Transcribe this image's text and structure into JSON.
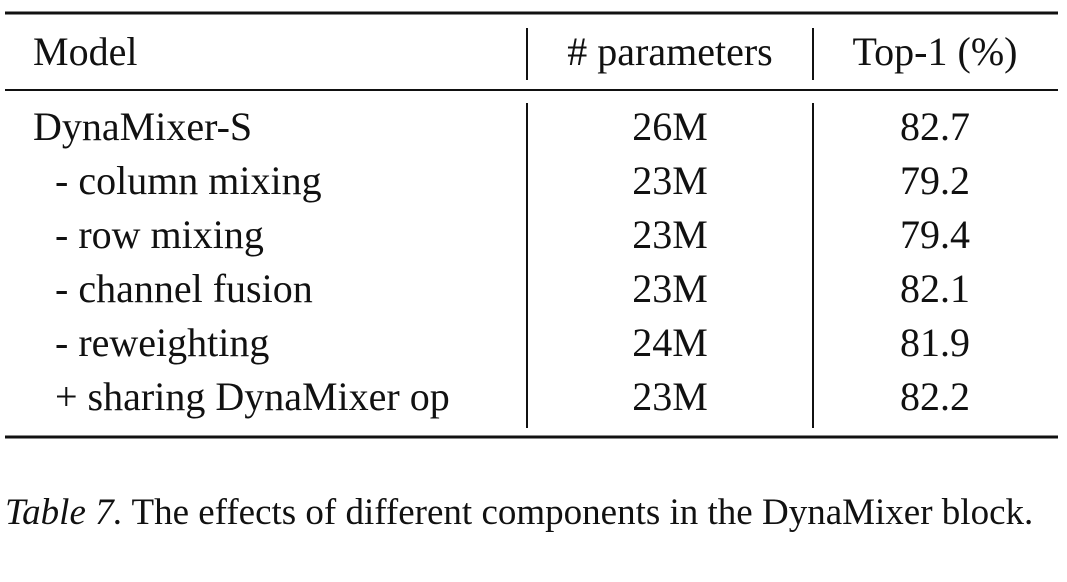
{
  "table": {
    "header": [
      "Model",
      "# parameters",
      "Top-1 (%)"
    ],
    "rows": [
      [
        "DynaMixer-S",
        "26M",
        "82.7"
      ],
      [
        "- column mixing",
        "23M",
        "79.2"
      ],
      [
        "- row mixing",
        "23M",
        "79.4"
      ],
      [
        "- channel fusion",
        "23M",
        "82.1"
      ],
      [
        "- reweighting",
        "24M",
        "81.9"
      ],
      [
        "+ sharing DynaMixer op",
        "23M",
        "82.2"
      ]
    ]
  },
  "caption": {
    "label": "Table 7.",
    "text": "The effects of different components in the DynaMixer block."
  }
}
